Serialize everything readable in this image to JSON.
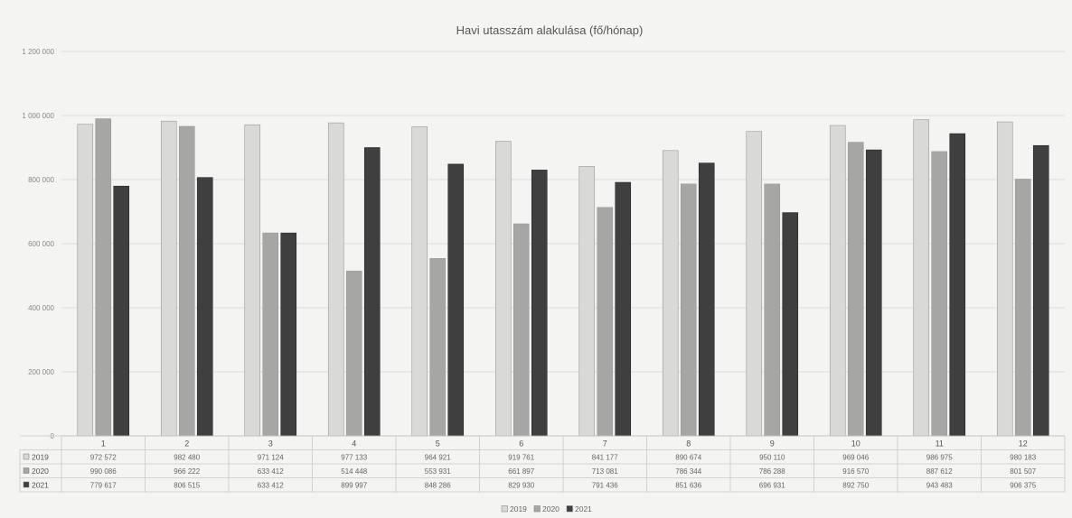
{
  "chart_data": {
    "type": "bar",
    "title": "Havi utasszám alakulása (fő/hónap)",
    "xlabel": "",
    "ylabel": "",
    "ylim": [
      0,
      1200000
    ],
    "yticks": [
      0,
      200000,
      400000,
      600000,
      800000,
      1000000,
      1200000
    ],
    "ytick_labels": [
      "0",
      "200 000",
      "400 000",
      "600 000",
      "800 000",
      "1 000 000",
      "1 200 000"
    ],
    "grid": true,
    "legend_position": "bottom",
    "categories": [
      "1",
      "2",
      "3",
      "4",
      "5",
      "6",
      "7",
      "8",
      "9",
      "10",
      "11",
      "12"
    ],
    "series": [
      {
        "name": "2019",
        "color": "#d9d9d7",
        "values": [
          972572,
          982480,
          971124,
          977133,
          964921,
          919761,
          841177,
          890674,
          950110,
          969046,
          986975,
          980183
        ],
        "labels": [
          "972 572",
          "982 480",
          "971 124",
          "977 133",
          "964 921",
          "919 761",
          "841 177",
          "890 674",
          "950 110",
          "969 046",
          "986 975",
          "980 183"
        ]
      },
      {
        "name": "2020",
        "color": "#a6a6a4",
        "values": [
          990086,
          966222,
          633412,
          514448,
          553931,
          661897,
          713081,
          786344,
          786288,
          916570,
          887612,
          801507
        ],
        "labels": [
          "990 086",
          "966 222",
          "633 412",
          "514 448",
          "553 931",
          "661 897",
          "713 081",
          "786 344",
          "786 288",
          "916 570",
          "887 612",
          "801 507"
        ]
      },
      {
        "name": "2021",
        "color": "#3f3f3f",
        "values": [
          779617,
          806515,
          633412,
          899997,
          848286,
          829930,
          791436,
          851636,
          696931,
          892750,
          943483,
          906375
        ],
        "labels": [
          "779 617",
          "806 515",
          "633 412",
          "899 997",
          "848 286",
          "829 930",
          "791 436",
          "851 636",
          "696 931",
          "892 750",
          "943 483",
          "906 375"
        ]
      }
    ]
  }
}
